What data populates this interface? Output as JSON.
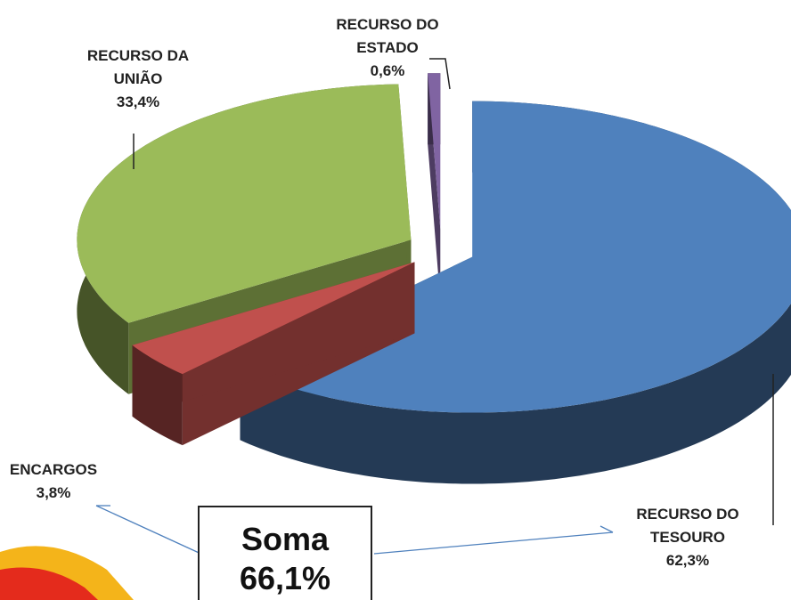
{
  "chart_data": {
    "type": "pie",
    "categories": [
      "RECURSO DO TESOURO",
      "ENCARGOS",
      "RECURSO DA UNIÃO",
      "RECURSO DO ESTADO"
    ],
    "values": [
      62.3,
      3.8,
      33.4,
      0.6
    ],
    "value_labels": [
      "62,3%",
      "3,8%",
      "33,4%",
      "0,6%"
    ],
    "colors": [
      "#4f81bd",
      "#c0504d",
      "#9bbb59",
      "#8064a2"
    ],
    "annotation": {
      "title": "Soma",
      "value": "66,1%"
    }
  }
}
